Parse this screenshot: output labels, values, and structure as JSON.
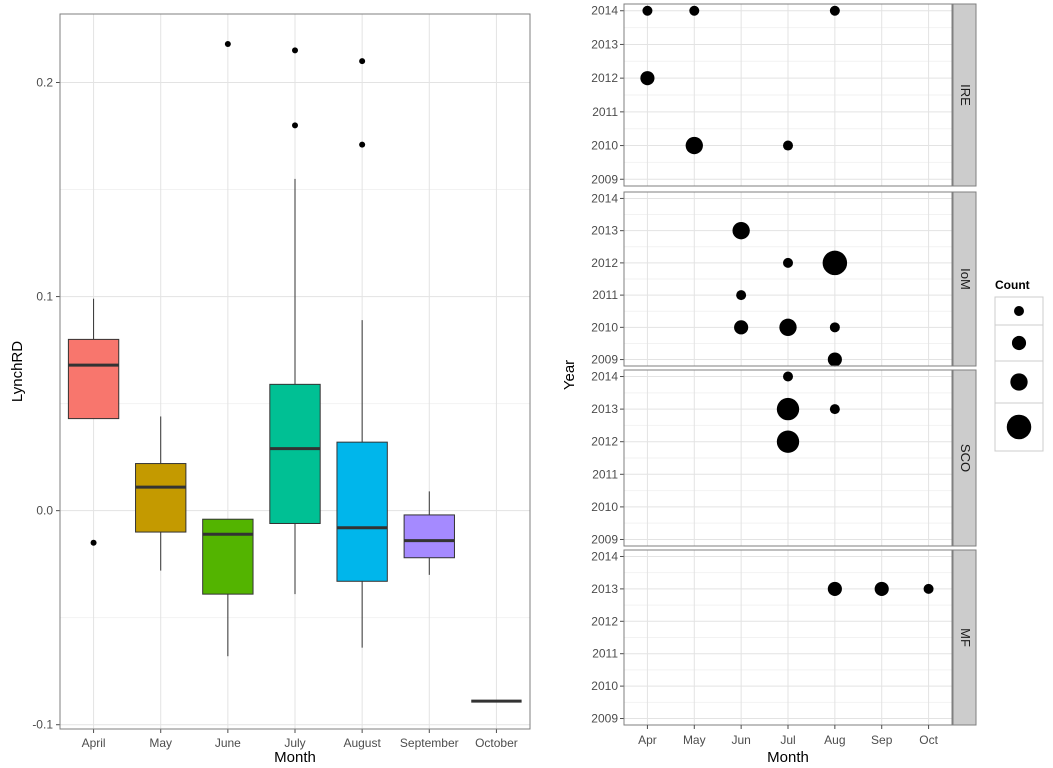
{
  "chart_data": [
    {
      "type": "boxplot",
      "xlabel": "Month",
      "ylabel": "LynchRD",
      "ylim": [
        -0.102,
        0.232
      ],
      "y_ticks": [
        {
          "value": -0.1,
          "label": "-0.1"
        },
        {
          "value": 0.0,
          "label": "0.0"
        },
        {
          "value": 0.1,
          "label": "0.1"
        },
        {
          "value": 0.2,
          "label": "0.2"
        }
      ],
      "grid": true,
      "boxes": [
        {
          "category": "April",
          "color": "#F8766D",
          "whisker_low": 0.043,
          "q1": 0.043,
          "median": 0.068,
          "q3": 0.08,
          "whisker_high": 0.099,
          "outliers": [
            -0.015
          ]
        },
        {
          "category": "May",
          "color": "#C49A00",
          "whisker_low": -0.028,
          "q1": -0.01,
          "median": 0.011,
          "q3": 0.022,
          "whisker_high": 0.044,
          "outliers": []
        },
        {
          "category": "June",
          "color": "#53B400",
          "whisker_low": -0.068,
          "q1": -0.039,
          "median": -0.011,
          "q3": -0.004,
          "whisker_high": -0.004,
          "outliers": [
            0.218
          ]
        },
        {
          "category": "July",
          "color": "#00C094",
          "whisker_low": -0.039,
          "q1": -0.006,
          "median": 0.029,
          "q3": 0.059,
          "whisker_high": 0.155,
          "outliers": [
            0.215,
            0.18
          ]
        },
        {
          "category": "August",
          "color": "#00B6EB",
          "whisker_low": -0.064,
          "q1": -0.033,
          "median": -0.008,
          "q3": 0.032,
          "whisker_high": 0.089,
          "outliers": [
            0.21,
            0.171
          ]
        },
        {
          "category": "September",
          "color": "#A58AFF",
          "whisker_low": -0.03,
          "q1": -0.022,
          "median": -0.014,
          "q3": -0.002,
          "whisker_high": 0.009,
          "outliers": []
        },
        {
          "category": "October",
          "color": "#FB61D7",
          "whisker_low": -0.089,
          "q1": -0.089,
          "median": -0.089,
          "q3": -0.089,
          "whisker_high": -0.089,
          "outliers": []
        }
      ]
    },
    {
      "type": "scatter",
      "xlabel": "Month",
      "ylabel": "Year",
      "x_categories": [
        "Apr",
        "May",
        "Jun",
        "Jul",
        "Aug",
        "Sep",
        "Oct"
      ],
      "y_ticks": [
        2009,
        2010,
        2011,
        2012,
        2013,
        2014
      ],
      "ylim": [
        2008.8,
        2014.2
      ],
      "grid": true,
      "legend": {
        "title": "Count",
        "position": "right",
        "sizes": [
          1,
          2,
          3,
          4
        ]
      },
      "facets": [
        {
          "label": "IRE",
          "points": [
            {
              "x": "Apr",
              "y": 2014,
              "count": 1
            },
            {
              "x": "May",
              "y": 2014,
              "count": 1
            },
            {
              "x": "Aug",
              "y": 2014,
              "count": 1
            },
            {
              "x": "Apr",
              "y": 2012,
              "count": 2
            },
            {
              "x": "May",
              "y": 2010,
              "count": 3
            },
            {
              "x": "Jul",
              "y": 2010,
              "count": 1
            }
          ]
        },
        {
          "label": "IoM",
          "points": [
            {
              "x": "Jun",
              "y": 2013,
              "count": 3
            },
            {
              "x": "Jul",
              "y": 2012,
              "count": 1
            },
            {
              "x": "Aug",
              "y": 2012,
              "count": 6
            },
            {
              "x": "Jun",
              "y": 2011,
              "count": 1
            },
            {
              "x": "Jun",
              "y": 2010,
              "count": 2
            },
            {
              "x": "Jul",
              "y": 2010,
              "count": 3
            },
            {
              "x": "Aug",
              "y": 2010,
              "count": 1
            },
            {
              "x": "Aug",
              "y": 2009,
              "count": 2
            }
          ]
        },
        {
          "label": "SCO",
          "points": [
            {
              "x": "Jul",
              "y": 2014,
              "count": 1
            },
            {
              "x": "Jul",
              "y": 2013,
              "count": 5
            },
            {
              "x": "Aug",
              "y": 2013,
              "count": 1
            },
            {
              "x": "Jul",
              "y": 2012,
              "count": 5
            }
          ]
        },
        {
          "label": "MF",
          "points": [
            {
              "x": "Aug",
              "y": 2013,
              "count": 2
            },
            {
              "x": "Sep",
              "y": 2013,
              "count": 2
            },
            {
              "x": "Oct",
              "y": 2013,
              "count": 1
            }
          ]
        }
      ]
    }
  ]
}
